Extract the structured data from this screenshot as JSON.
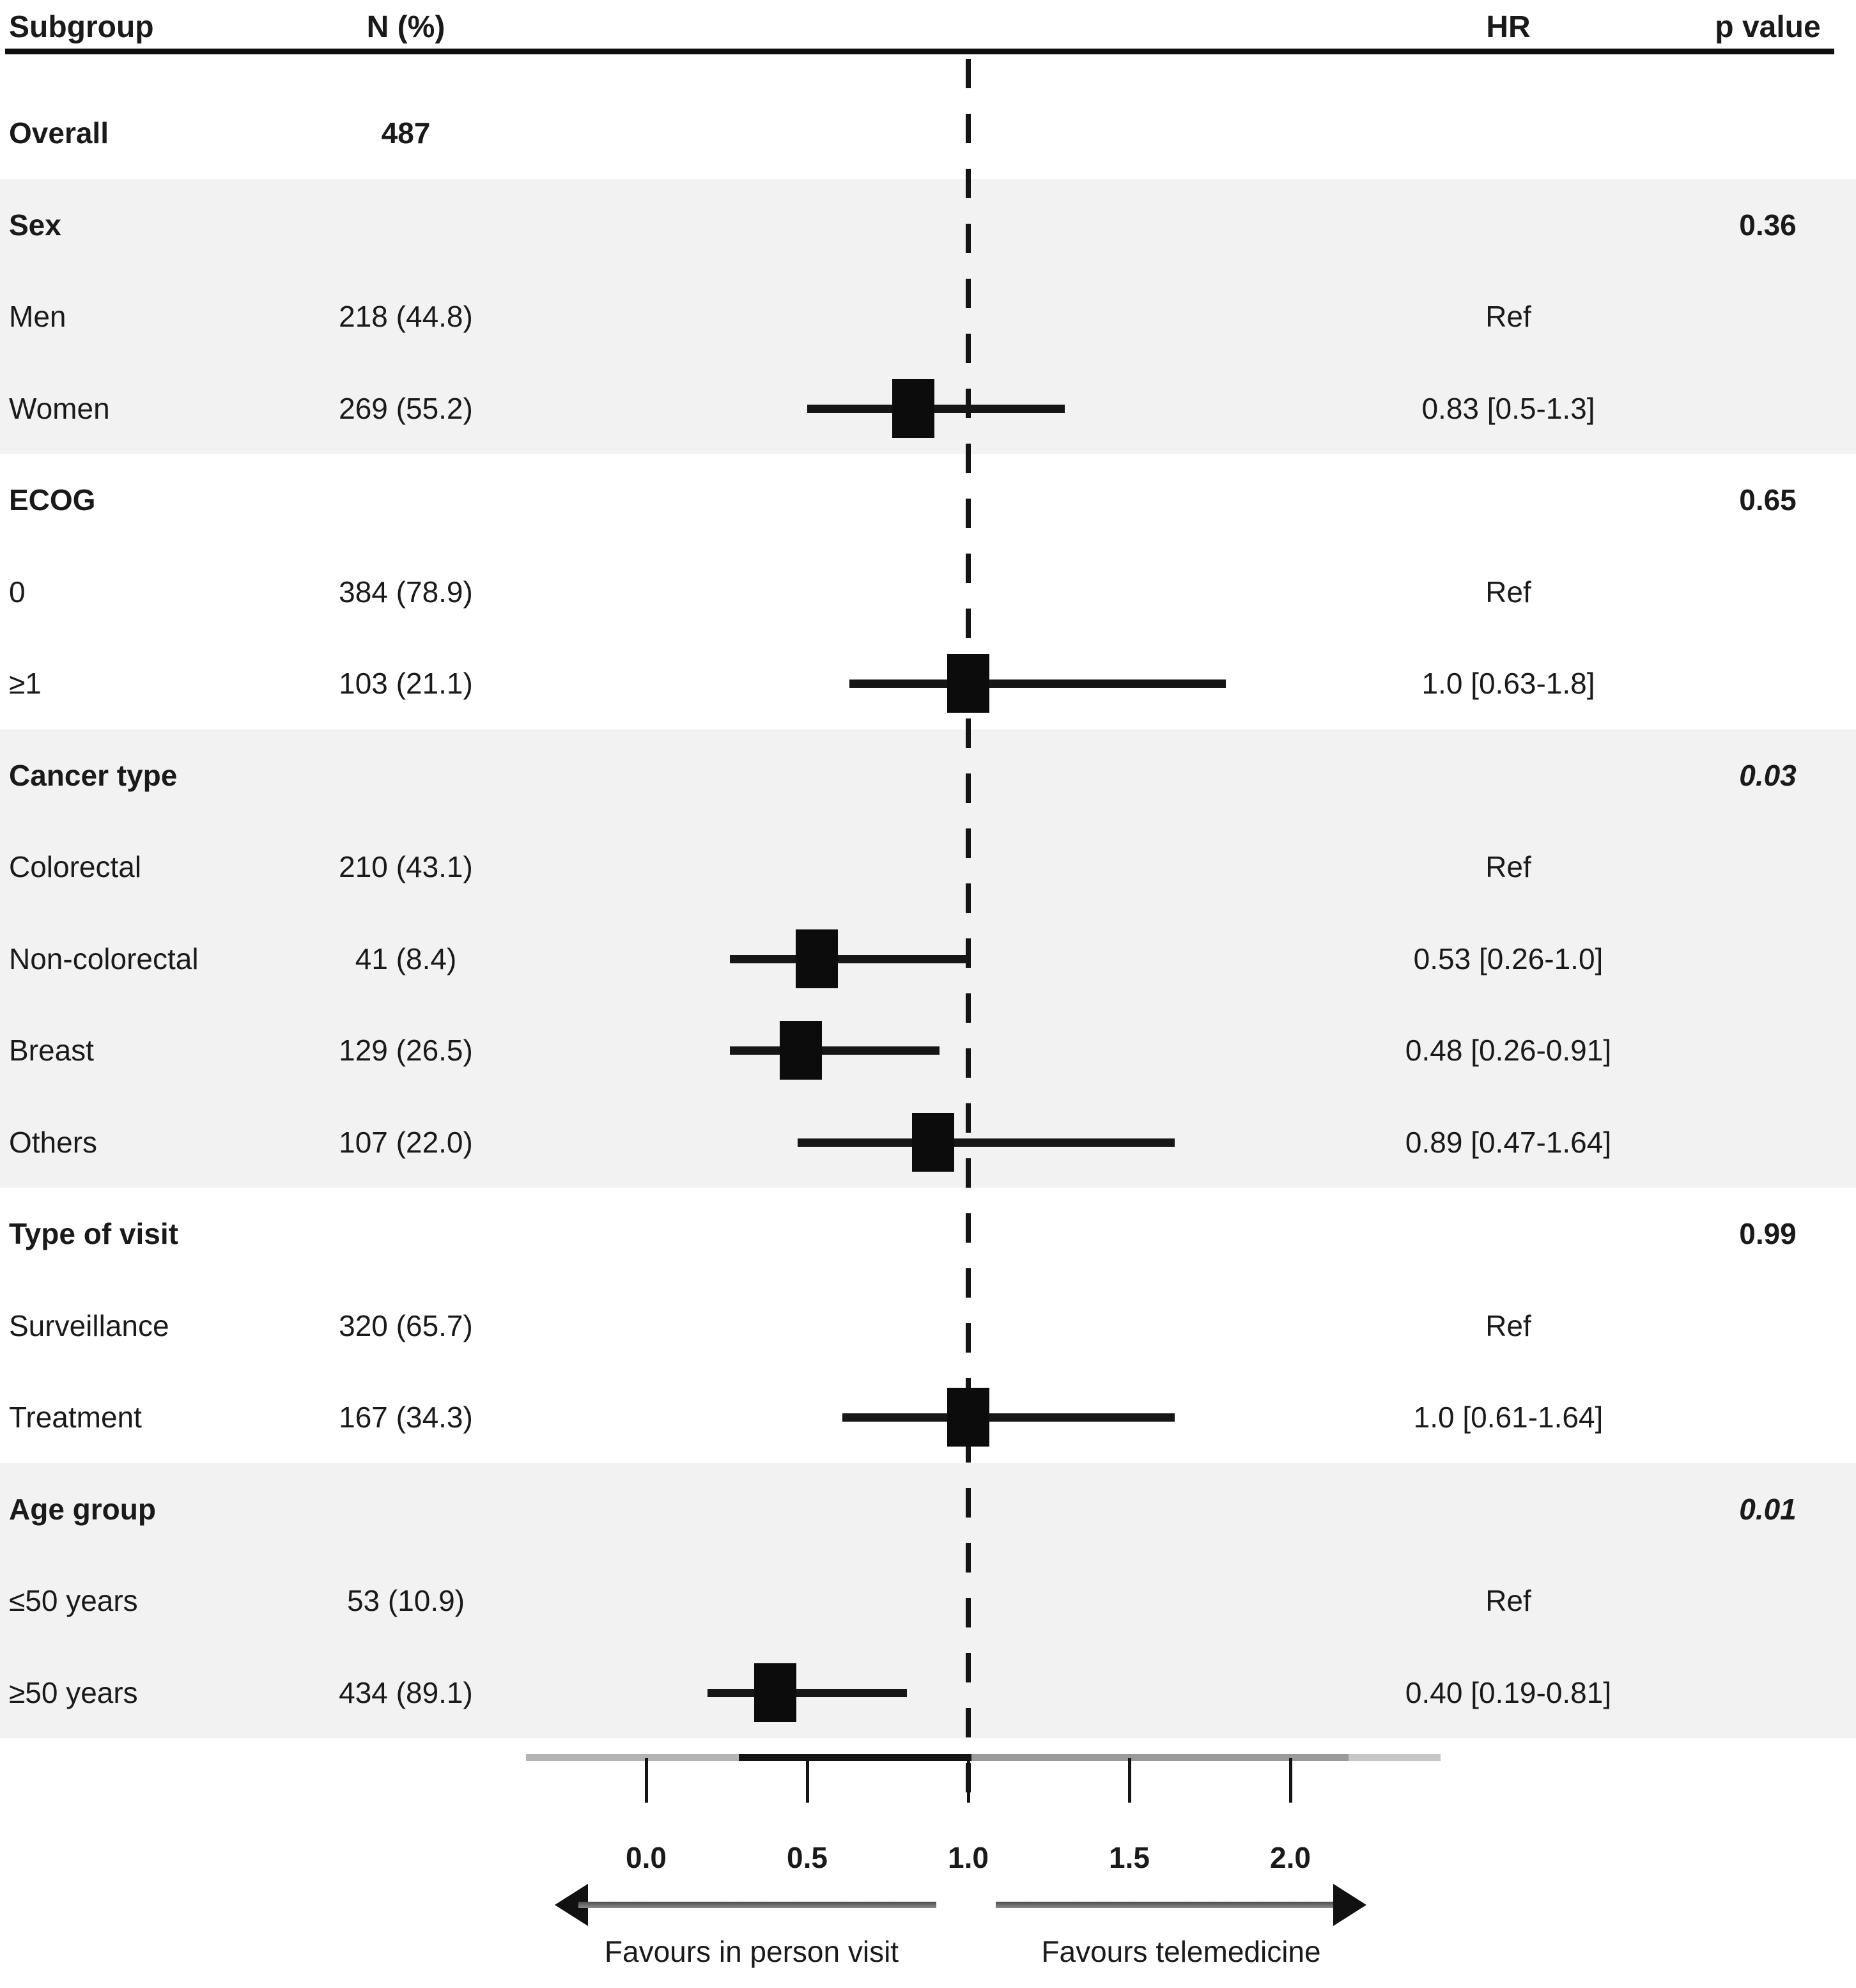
{
  "table": {
    "headers": {
      "subgroup": "Subgroup",
      "n": "N (%)",
      "hr": "HR",
      "p": "p value"
    }
  },
  "rows": [
    {
      "label": "Overall",
      "n": "487",
      "hr": "",
      "p": "",
      "bold": true,
      "italic_p": false,
      "shaded": false,
      "est": null,
      "lo": null,
      "hi": null
    },
    {
      "label": "Sex",
      "n": "",
      "hr": "",
      "p": "0.36",
      "bold": true,
      "italic_p": false,
      "shaded": true,
      "est": null,
      "lo": null,
      "hi": null
    },
    {
      "label": "Men",
      "n": "218 (44.8)",
      "hr": "Ref",
      "p": "",
      "bold": false,
      "italic_p": false,
      "shaded": true,
      "est": null,
      "lo": null,
      "hi": null
    },
    {
      "label": "Women",
      "n": "269 (55.2)",
      "hr": "0.83 [0.5-1.3]",
      "p": "",
      "bold": false,
      "italic_p": false,
      "shaded": true,
      "est": 0.83,
      "lo": 0.5,
      "hi": 1.3
    },
    {
      "label": "ECOG",
      "n": "",
      "hr": "",
      "p": "0.65",
      "bold": true,
      "italic_p": false,
      "shaded": false,
      "est": null,
      "lo": null,
      "hi": null
    },
    {
      "label": "0",
      "n": "384 (78.9)",
      "hr": "Ref",
      "p": "",
      "bold": false,
      "italic_p": false,
      "shaded": false,
      "est": null,
      "lo": null,
      "hi": null
    },
    {
      "label": "≥1",
      "n": "103 (21.1)",
      "hr": "1.0 [0.63-1.8]",
      "p": "",
      "bold": false,
      "italic_p": false,
      "shaded": false,
      "est": 1.0,
      "lo": 0.63,
      "hi": 1.8
    },
    {
      "label": "Cancer type",
      "n": "",
      "hr": "",
      "p": "0.03",
      "bold": true,
      "italic_p": true,
      "shaded": true,
      "est": null,
      "lo": null,
      "hi": null
    },
    {
      "label": "Colorectal",
      "n": "210 (43.1)",
      "hr": "Ref",
      "p": "",
      "bold": false,
      "italic_p": false,
      "shaded": true,
      "est": null,
      "lo": null,
      "hi": null
    },
    {
      "label": "Non-colorectal",
      "n": "41 (8.4)",
      "hr": "0.53 [0.26-1.0]",
      "p": "",
      "bold": false,
      "italic_p": false,
      "shaded": true,
      "est": 0.53,
      "lo": 0.26,
      "hi": 1.0
    },
    {
      "label": "Breast",
      "n": "129 (26.5)",
      "hr": "0.48 [0.26-0.91]",
      "p": "",
      "bold": false,
      "italic_p": false,
      "shaded": true,
      "est": 0.48,
      "lo": 0.26,
      "hi": 0.91
    },
    {
      "label": "Others",
      "n": "107 (22.0)",
      "hr": "0.89 [0.47-1.64]",
      "p": "",
      "bold": false,
      "italic_p": false,
      "shaded": true,
      "est": 0.89,
      "lo": 0.47,
      "hi": 1.64
    },
    {
      "label": "Type of visit",
      "n": "",
      "hr": "",
      "p": "0.99",
      "bold": true,
      "italic_p": false,
      "shaded": false,
      "est": null,
      "lo": null,
      "hi": null
    },
    {
      "label": "Surveillance",
      "n": "320 (65.7)",
      "hr": "Ref",
      "p": "",
      "bold": false,
      "italic_p": false,
      "shaded": false,
      "est": null,
      "lo": null,
      "hi": null
    },
    {
      "label": "Treatment",
      "n": "167 (34.3)",
      "hr": "1.0 [0.61-1.64]",
      "p": "",
      "bold": false,
      "italic_p": false,
      "shaded": false,
      "est": 1.0,
      "lo": 0.61,
      "hi": 1.64
    },
    {
      "label": "Age group",
      "n": "",
      "hr": "",
      "p": "0.01",
      "bold": true,
      "italic_p": true,
      "shaded": true,
      "est": null,
      "lo": null,
      "hi": null
    },
    {
      "label": "≤50 years",
      "n": "53 (10.9)",
      "hr": "Ref",
      "p": "",
      "bold": false,
      "italic_p": false,
      "shaded": true,
      "est": null,
      "lo": null,
      "hi": null
    },
    {
      "label": "≥50 years",
      "n": "434 (89.1)",
      "hr": "0.40 [0.19-0.81]",
      "p": "",
      "bold": false,
      "italic_p": false,
      "shaded": true,
      "est": 0.4,
      "lo": 0.19,
      "hi": 0.81
    }
  ],
  "axis": {
    "tick_values": [
      0.0,
      0.5,
      1.0,
      1.5,
      2.0
    ],
    "tick_labels": [
      "0.0",
      "0.5",
      "1.0",
      "1.5",
      "2.0"
    ],
    "reference_value": 1.0
  },
  "arrows": {
    "left_label": "Favours in person visit",
    "right_label": "Favours telemedicine"
  },
  "colors": {
    "text": "#1a1a1a",
    "band": "#f2f2f2",
    "marker": "#0c0c0c",
    "axis_gray": "#9a9a9a"
  },
  "chart_data": {
    "type": "scatter",
    "subtype": "forest-plot",
    "x_axis": {
      "tick_values": [
        0.0,
        0.5,
        1.0,
        1.5,
        2.0
      ],
      "tick_labels": [
        "0.0",
        "0.5",
        "1.0",
        "1.5",
        "2.0"
      ],
      "range_shown": [
        -0.38,
        2.47
      ],
      "reference_line": 1.0,
      "grid": false
    },
    "columns": [
      "Subgroup",
      "N (%)",
      "HR",
      "p value"
    ],
    "overall_n": 487,
    "subgroups": [
      {
        "group": "Sex",
        "p_value": 0.36,
        "levels": [
          {
            "label": "Men",
            "n": 218,
            "pct": 44.8,
            "hr": "Ref"
          },
          {
            "label": "Women",
            "n": 269,
            "pct": 55.2,
            "hr": 0.83,
            "ci": [
              0.5,
              1.3
            ]
          }
        ]
      },
      {
        "group": "ECOG",
        "p_value": 0.65,
        "levels": [
          {
            "label": "0",
            "n": 384,
            "pct": 78.9,
            "hr": "Ref"
          },
          {
            "label": "≥1",
            "n": 103,
            "pct": 21.1,
            "hr": 1.0,
            "ci": [
              0.63,
              1.8
            ]
          }
        ]
      },
      {
        "group": "Cancer type",
        "p_value": 0.03,
        "levels": [
          {
            "label": "Colorectal",
            "n": 210,
            "pct": 43.1,
            "hr": "Ref"
          },
          {
            "label": "Non-colorectal",
            "n": 41,
            "pct": 8.4,
            "hr": 0.53,
            "ci": [
              0.26,
              1.0
            ]
          },
          {
            "label": "Breast",
            "n": 129,
            "pct": 26.5,
            "hr": 0.48,
            "ci": [
              0.26,
              0.91
            ]
          },
          {
            "label": "Others",
            "n": 107,
            "pct": 22.0,
            "hr": 0.89,
            "ci": [
              0.47,
              1.64
            ]
          }
        ]
      },
      {
        "group": "Type of visit",
        "p_value": 0.99,
        "levels": [
          {
            "label": "Surveillance",
            "n": 320,
            "pct": 65.7,
            "hr": "Ref"
          },
          {
            "label": "Treatment",
            "n": 167,
            "pct": 34.3,
            "hr": 1.0,
            "ci": [
              0.61,
              1.64
            ]
          }
        ]
      },
      {
        "group": "Age group",
        "p_value": 0.01,
        "levels": [
          {
            "label": "≤50 years",
            "n": 53,
            "pct": 10.9,
            "hr": "Ref"
          },
          {
            "label": "≥50 years",
            "n": 434,
            "pct": 89.1,
            "hr": 0.4,
            "ci": [
              0.19,
              0.81
            ]
          }
        ]
      }
    ],
    "annotations": {
      "left_arrow": "Favours in person visit",
      "right_arrow": "Favours telemedicine"
    },
    "legend": "none"
  }
}
